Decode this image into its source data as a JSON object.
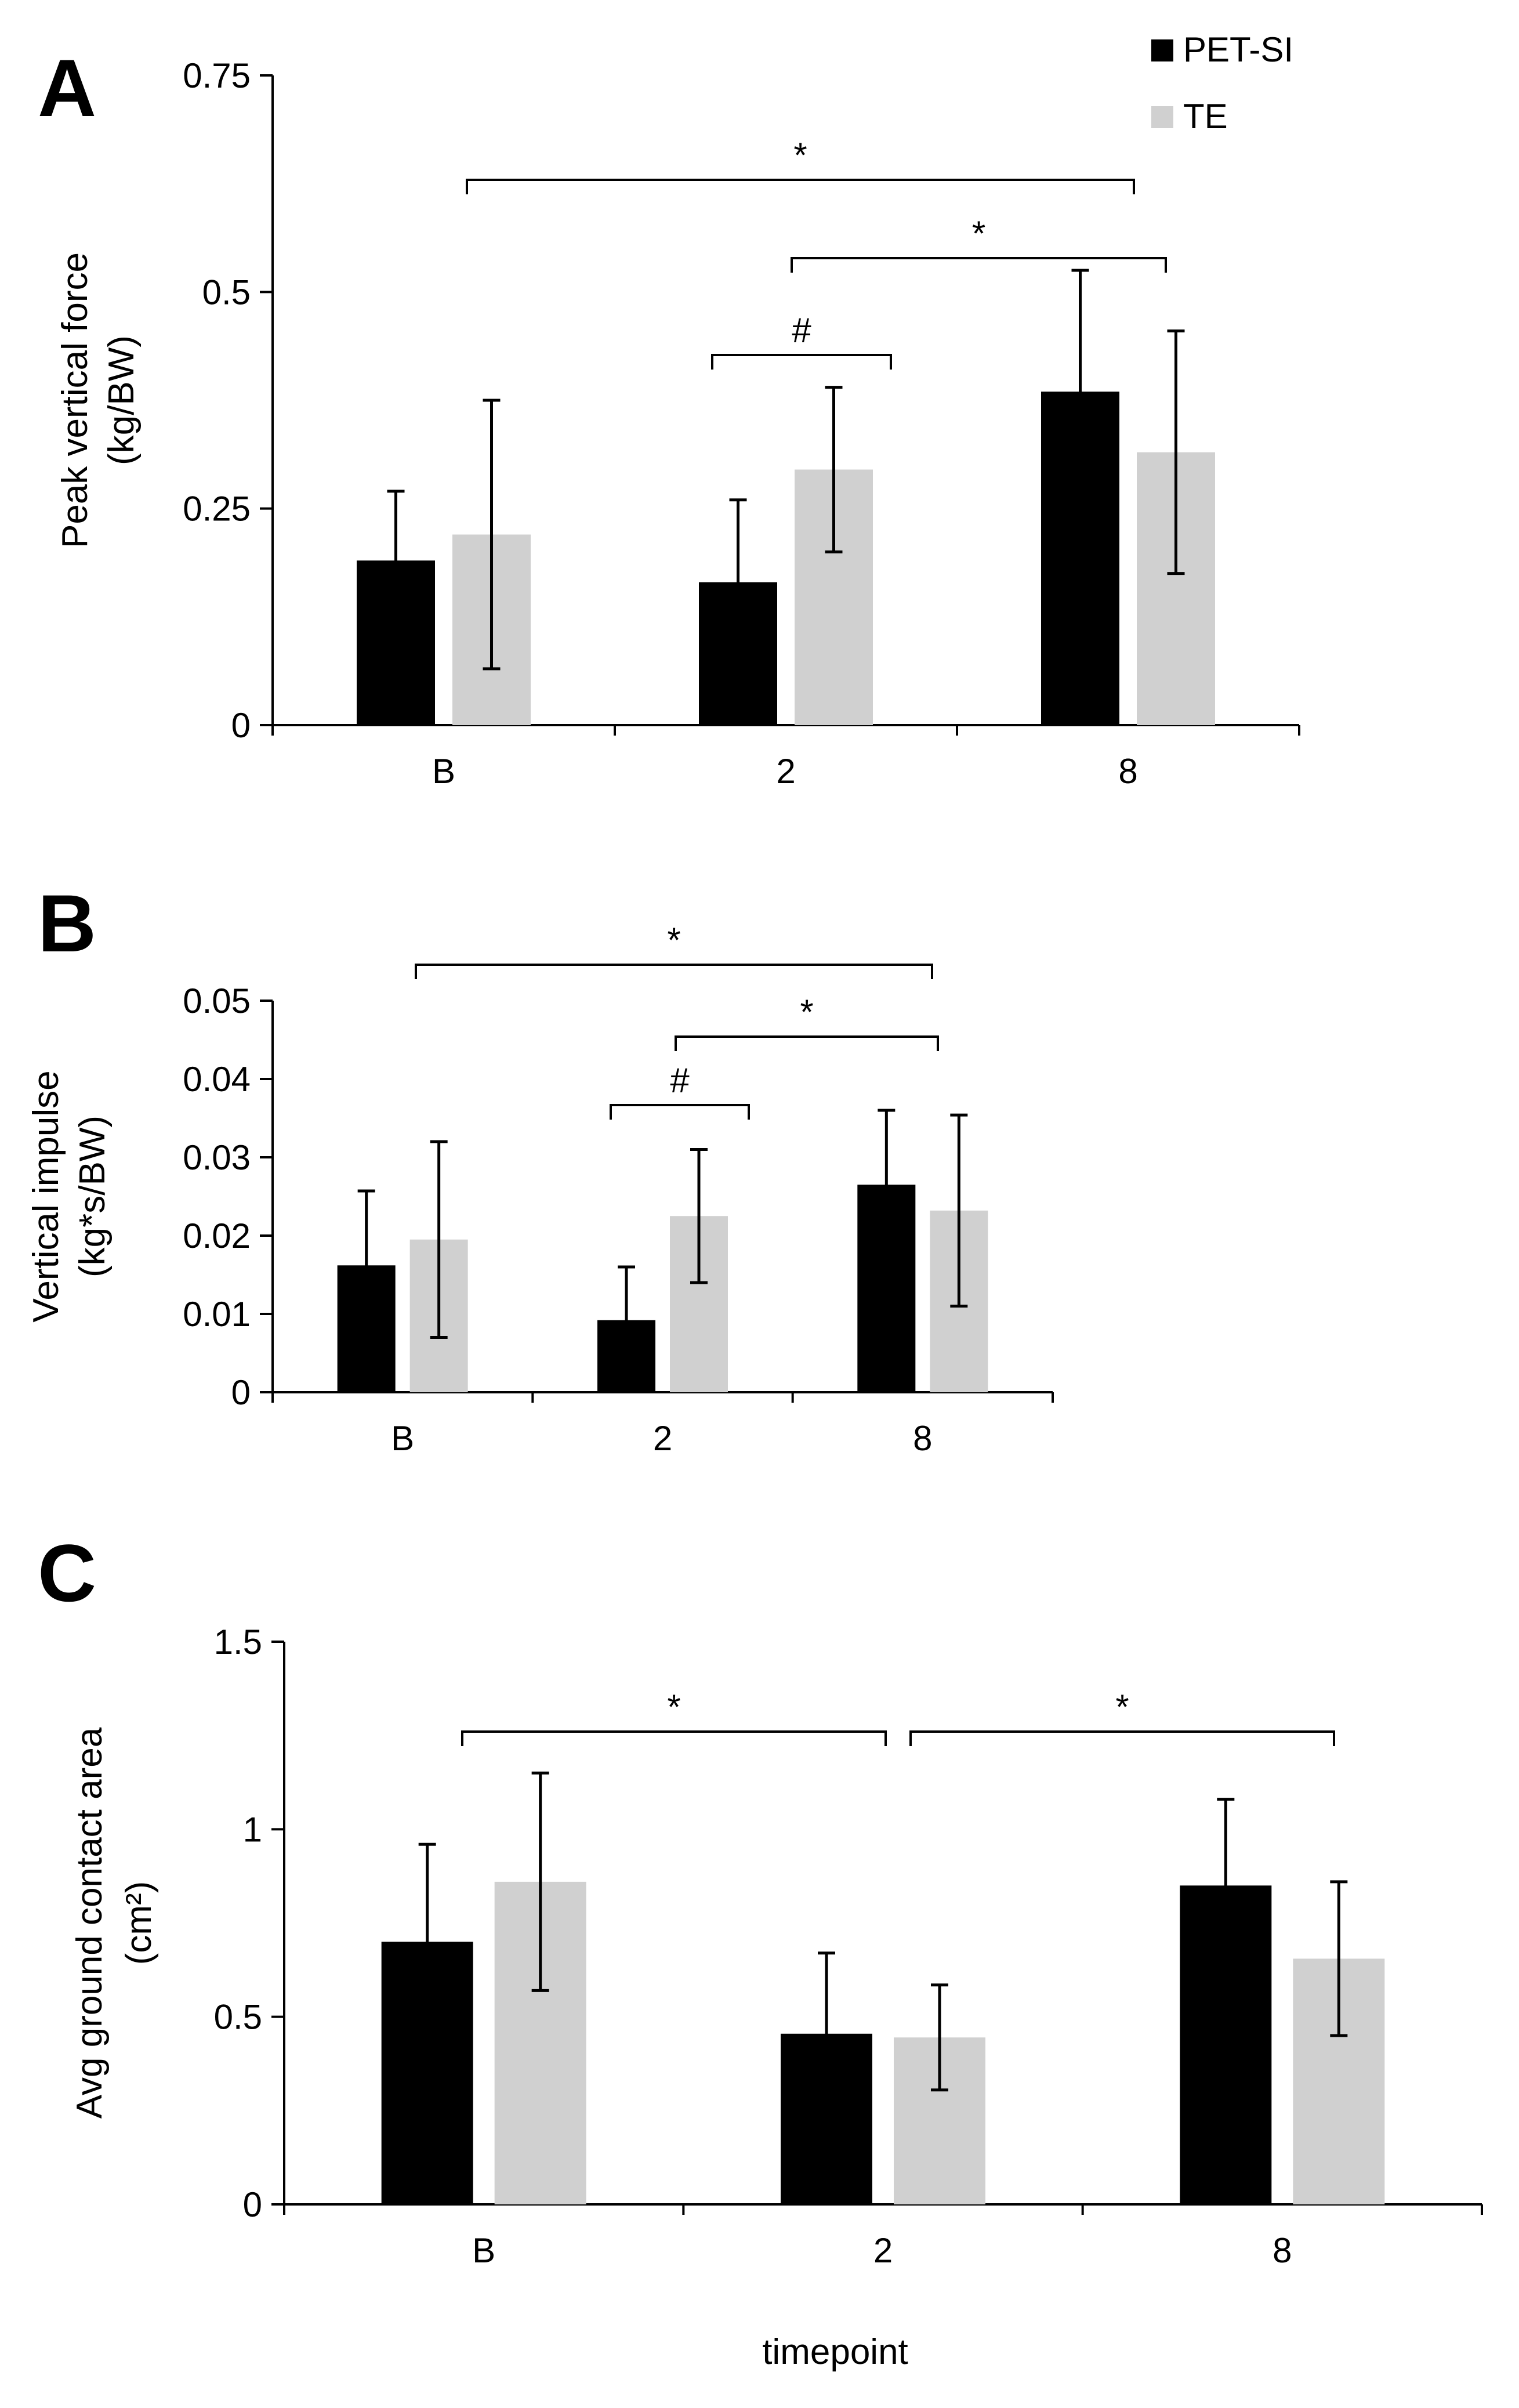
{
  "legend": {
    "series": [
      {
        "name": "PET-SI",
        "color": "#000000"
      },
      {
        "name": "TE",
        "color": "#d0d0d0"
      }
    ]
  },
  "xlabel": "timepoint",
  "chart_data": [
    {
      "type": "bar",
      "panel": "A",
      "categories": [
        "B",
        "2",
        "8"
      ],
      "ylabel_lines": [
        "Peak vertical force",
        "(kg/BW)"
      ],
      "ylim": [
        0,
        0.75
      ],
      "yticks": [
        "0",
        "0.25",
        "0.5",
        "0.75"
      ],
      "series": [
        {
          "name": "PET-SI",
          "values": [
            0.19,
            0.165,
            0.385
          ],
          "errors": [
            0.08,
            0.095,
            0.14
          ]
        },
        {
          "name": "TE",
          "values": [
            0.22,
            0.295,
            0.315
          ],
          "errors": [
            0.155,
            0.095,
            0.14
          ]
        }
      ],
      "annotations": [
        {
          "label": "*",
          "from": "B",
          "to": "8"
        },
        {
          "label": "*",
          "from": "2",
          "to": "8"
        },
        {
          "label": "#",
          "from": "2",
          "to": "2"
        }
      ]
    },
    {
      "type": "bar",
      "panel": "B",
      "categories": [
        "B",
        "2",
        "8"
      ],
      "ylabel_lines": [
        "Vertical impulse",
        "(kg*s/BW)"
      ],
      "ylim": [
        0,
        0.05
      ],
      "yticks": [
        "0",
        "0.01",
        "0.02",
        "0.03",
        "0.04",
        "0.05"
      ],
      "series": [
        {
          "name": "PET-SI",
          "values": [
            0.0162,
            0.0092,
            0.0265
          ],
          "errors": [
            0.0095,
            0.0068,
            0.0095
          ]
        },
        {
          "name": "TE",
          "values": [
            0.0195,
            0.0225,
            0.0232
          ],
          "errors": [
            0.0125,
            0.0085,
            0.0122
          ]
        }
      ],
      "annotations": [
        {
          "label": "*",
          "from": "B",
          "to": "8"
        },
        {
          "label": "*",
          "from": "2",
          "to": "8"
        },
        {
          "label": "#",
          "from": "2",
          "to": "2"
        }
      ]
    },
    {
      "type": "bar",
      "panel": "C",
      "categories": [
        "B",
        "2",
        "8"
      ],
      "ylabel_lines": [
        "Avg ground contact area",
        "(cm²)"
      ],
      "ylim": [
        0,
        1.5
      ],
      "yticks": [
        "0",
        "0.5",
        "1",
        "1.5"
      ],
      "series": [
        {
          "name": "PET-SI",
          "values": [
            0.7,
            0.455,
            0.85
          ],
          "errors": [
            0.26,
            0.215,
            0.23
          ]
        },
        {
          "name": "TE",
          "values": [
            0.86,
            0.445,
            0.655
          ],
          "errors": [
            0.29,
            0.14,
            0.205
          ]
        }
      ],
      "annotations": [
        {
          "label": "*",
          "from": "B",
          "to": "2"
        },
        {
          "label": "*",
          "from": "2",
          "to": "8"
        }
      ]
    }
  ]
}
